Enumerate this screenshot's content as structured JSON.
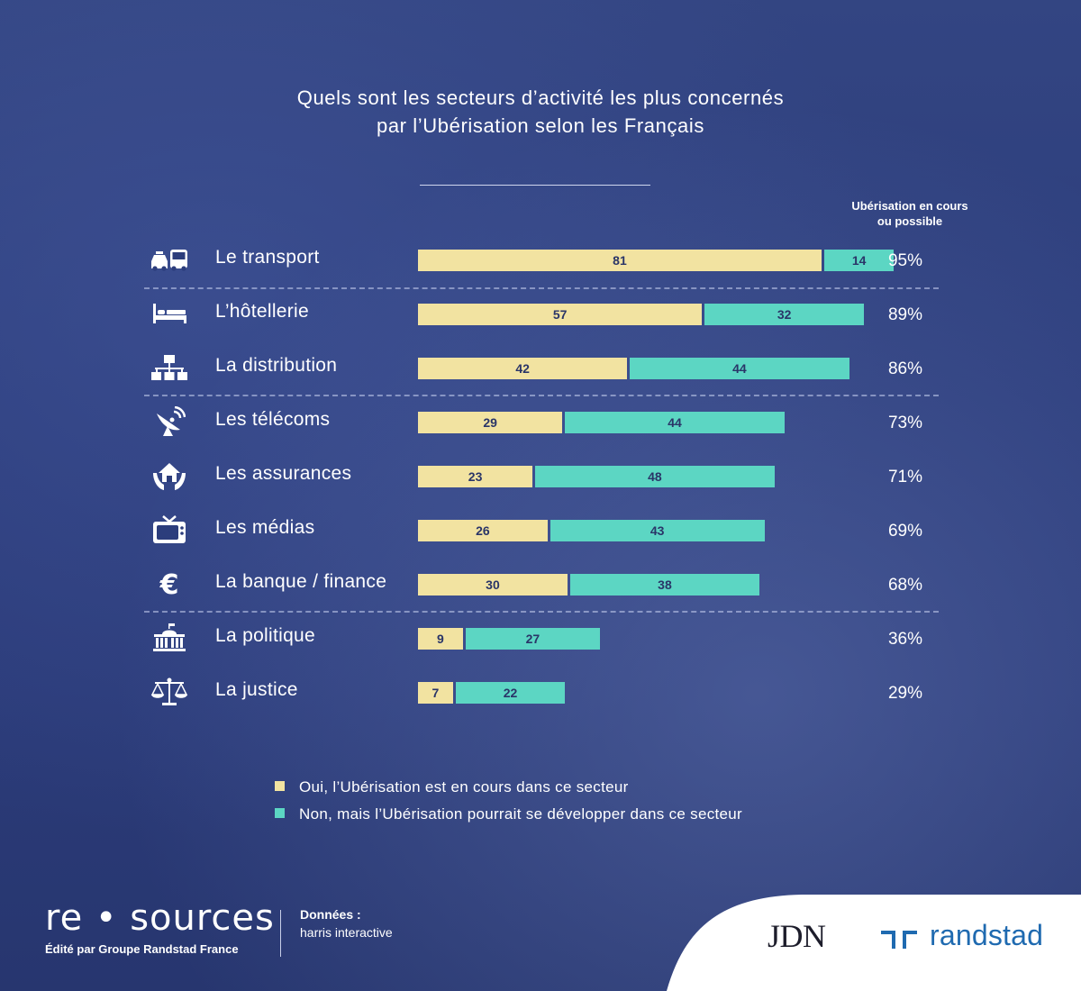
{
  "title": {
    "line1": "Quels sont les secteurs d’activité les plus concernés",
    "line2": "par l’Ubérisation selon les Français"
  },
  "column_header": {
    "line1": "Ubérisation en cours",
    "line2": "ou possible"
  },
  "colors": {
    "en_cours": "#f2e3a1",
    "possible": "#5cd6c3",
    "background": "#2c3d7c",
    "bar_text": "#2a3568",
    "randstad": "#1f6ab0"
  },
  "chart_data": {
    "type": "bar",
    "orientation": "horizontal",
    "stacked": true,
    "title": "Quels sont les secteurs d’activité les plus concernés par l’Ubérisation selon les Français",
    "categories": [
      "Le transport",
      "L’hôtellerie",
      "La distribution",
      "Les télécoms",
      "Les assurances",
      "Les médias",
      "La banque / finance",
      "La politique",
      "La justice"
    ],
    "series": [
      {
        "name": "Oui, l’Ubérisation est en cours dans ce secteur",
        "values": [
          81,
          57,
          42,
          29,
          23,
          26,
          30,
          9,
          7
        ]
      },
      {
        "name": "Non, mais l’Ubérisation pourrait se développer dans ce secteur",
        "values": [
          14,
          32,
          44,
          44,
          48,
          43,
          38,
          27,
          22
        ]
      }
    ],
    "totals_header": "Ubérisation en cours ou possible",
    "totals": [
      "95%",
      "89%",
      "86%",
      "73%",
      "71%",
      "69%",
      "68%",
      "36%",
      "29%"
    ],
    "xlim": [
      0,
      100
    ],
    "legend_position": "bottom"
  },
  "rows": [
    {
      "label": "Le transport",
      "icon": "transport-icon"
    },
    {
      "label": "L’hôtellerie",
      "icon": "bed-icon"
    },
    {
      "label": "La distribution",
      "icon": "network-icon"
    },
    {
      "label": "Les télécoms",
      "icon": "satellite-dish-icon"
    },
    {
      "label": "Les assurances",
      "icon": "house-hands-icon"
    },
    {
      "label": "Les médias",
      "icon": "tv-icon"
    },
    {
      "label": "La banque / finance",
      "icon": "euro-icon"
    },
    {
      "label": "La politique",
      "icon": "government-building-icon"
    },
    {
      "label": "La justice",
      "icon": "scales-icon"
    }
  ],
  "legend": {
    "en_cours": "Oui, l’Ubérisation est en cours dans ce secteur",
    "possible": "Non, mais l’Ubérisation pourrait se développer dans ce secteur"
  },
  "footer": {
    "brand": "re • sources",
    "editor": "Édité par Groupe Randstad France",
    "source_label": "Données :",
    "source_value": "harris interactive",
    "logo_jdn": "JDN",
    "logo_randstad": "randstad"
  }
}
